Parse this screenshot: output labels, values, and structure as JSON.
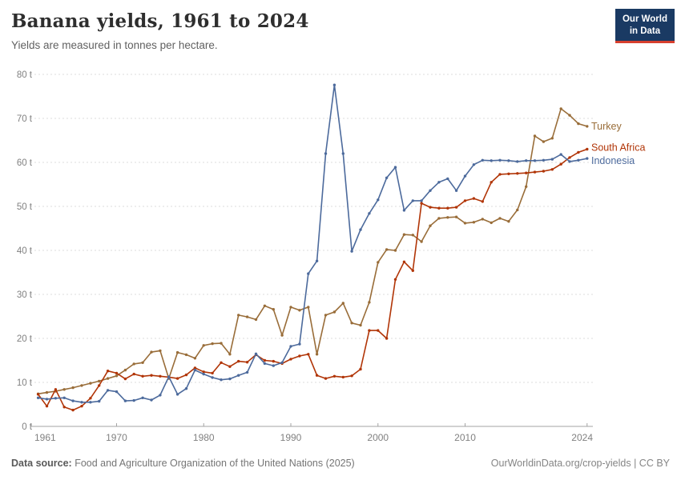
{
  "header": {
    "title": "Banana yields, 1961 to 2024",
    "subtitle": "Yields are measured in tonnes per hectare."
  },
  "logo": {
    "line1": "Our World",
    "line2": "in Data",
    "bg_color": "#1a3a63",
    "accent_color": "#d7402e"
  },
  "footer": {
    "source_label": "Data source:",
    "source_text": " Food and Agriculture Organization of the United Nations (2025)",
    "right_text": "OurWorldinData.org/crop-yields | CC BY"
  },
  "chart_data": {
    "type": "line",
    "title": "Banana yields, 1961 to 2024",
    "ylabel": "tonnes per hectare",
    "xlabel": "",
    "xlim": [
      1961,
      2024
    ],
    "ylim": [
      0,
      80
    ],
    "grid": "horizontal-dashed",
    "legend_position": "right-end-of-line",
    "x": [
      1961,
      1962,
      1963,
      1964,
      1965,
      1966,
      1967,
      1968,
      1969,
      1970,
      1971,
      1972,
      1973,
      1974,
      1975,
      1976,
      1977,
      1978,
      1979,
      1980,
      1981,
      1982,
      1983,
      1984,
      1985,
      1986,
      1987,
      1988,
      1989,
      1990,
      1991,
      1992,
      1993,
      1994,
      1995,
      1996,
      1997,
      1998,
      1999,
      2000,
      2001,
      2002,
      2003,
      2004,
      2005,
      2006,
      2007,
      2008,
      2009,
      2010,
      2011,
      2012,
      2013,
      2014,
      2015,
      2016,
      2017,
      2018,
      2019,
      2020,
      2021,
      2022,
      2023,
      2024
    ],
    "y_ticks": [
      {
        "value": 0,
        "label": "0 t"
      },
      {
        "value": 10,
        "label": "10 t"
      },
      {
        "value": 20,
        "label": "20 t"
      },
      {
        "value": 30,
        "label": "30 t"
      },
      {
        "value": 40,
        "label": "40 t"
      },
      {
        "value": 50,
        "label": "50 t"
      },
      {
        "value": 60,
        "label": "60 t"
      },
      {
        "value": 70,
        "label": "70 t"
      },
      {
        "value": 80,
        "label": "80 t"
      }
    ],
    "x_ticks": [
      {
        "value": 1961,
        "label": "1961"
      },
      {
        "value": 1970,
        "label": "1970"
      },
      {
        "value": 1980,
        "label": "1980"
      },
      {
        "value": 1990,
        "label": "1990"
      },
      {
        "value": 2000,
        "label": "2000"
      },
      {
        "value": 2010,
        "label": "2010"
      },
      {
        "value": 2024,
        "label": "2024"
      }
    ],
    "series": [
      {
        "name": "Turkey",
        "color": "#996D39",
        "values": [
          7.4,
          7.7,
          8.0,
          8.4,
          8.8,
          9.3,
          9.8,
          10.3,
          10.9,
          11.5,
          12.8,
          14.2,
          14.5,
          16.9,
          17.2,
          10.9,
          16.8,
          16.3,
          15.5,
          18.4,
          18.8,
          18.9,
          16.4,
          25.3,
          24.9,
          24.3,
          27.4,
          26.6,
          20.7,
          27.1,
          26.4,
          27.1,
          16.4,
          25.3,
          26.0,
          28.0,
          23.5,
          23.0,
          28.2,
          37.3,
          40.2,
          40.0,
          43.6,
          43.5,
          42.0,
          45.6,
          47.3,
          47.5,
          47.6,
          46.2,
          46.4,
          47.1,
          46.3,
          47.3,
          46.6,
          49.2,
          54.5,
          66.0,
          64.7,
          65.5,
          72.2,
          70.7,
          68.8,
          68.2
        ]
      },
      {
        "name": "South Africa",
        "color": "#B13507",
        "values": [
          7.3,
          4.6,
          8.4,
          4.4,
          3.7,
          4.6,
          6.4,
          9.3,
          12.6,
          12.1,
          10.8,
          11.9,
          11.4,
          11.6,
          11.4,
          11.2,
          10.9,
          11.7,
          13.3,
          12.4,
          12.1,
          14.5,
          13.6,
          14.8,
          14.6,
          16.3,
          15.0,
          14.8,
          14.3,
          15.3,
          16.0,
          16.4,
          11.6,
          10.9,
          11.4,
          11.2,
          11.5,
          13.0,
          21.8,
          21.8,
          20.0,
          33.4,
          37.4,
          35.4,
          50.7,
          49.8,
          49.6,
          49.6,
          49.8,
          51.3,
          51.8,
          51.1,
          55.5,
          57.3,
          57.4,
          57.5,
          57.6,
          57.8,
          58.0,
          58.4,
          59.6,
          61.1,
          62.3,
          63.0
        ]
      },
      {
        "name": "Indonesia",
        "color": "#4C6A9C",
        "values": [
          6.5,
          6.2,
          6.4,
          6.5,
          5.8,
          5.5,
          5.5,
          5.7,
          8.2,
          7.9,
          5.8,
          5.9,
          6.5,
          6.0,
          7.1,
          11.3,
          7.3,
          8.6,
          12.8,
          11.9,
          11.1,
          10.6,
          10.8,
          11.6,
          12.3,
          16.5,
          14.3,
          13.8,
          14.5,
          18.2,
          18.7,
          34.7,
          37.6,
          62.0,
          77.6,
          62.0,
          39.8,
          44.7,
          48.4,
          51.5,
          56.5,
          58.9,
          49.1,
          51.3,
          51.3,
          53.6,
          55.5,
          56.3,
          53.6,
          56.9,
          59.5,
          60.5,
          60.4,
          60.5,
          60.4,
          60.2,
          60.4,
          60.4,
          60.5,
          60.7,
          61.8,
          60.2,
          60.5,
          60.9
        ]
      }
    ]
  }
}
